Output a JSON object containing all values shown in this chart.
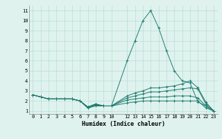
{
  "xlabel": "Humidex (Indice chaleur)",
  "bg_color": "#dff2ee",
  "line_color": "#1e7b6e",
  "grid_color": "#b8ddd7",
  "xlim": [
    -0.5,
    23.5
  ],
  "ylim": [
    0.7,
    11.5
  ],
  "xtick_positions": [
    0,
    1,
    2,
    3,
    4,
    5,
    6,
    7,
    8,
    9,
    10,
    12,
    13,
    14,
    15,
    16,
    17,
    18,
    19,
    20,
    21,
    22,
    23
  ],
  "xtick_labels": [
    "0",
    "1",
    "2",
    "3",
    "4",
    "5",
    "6",
    "7",
    "8",
    "9",
    "10",
    "12",
    "13",
    "14",
    "15",
    "16",
    "17",
    "18",
    "19",
    "20",
    "21",
    "22",
    "23"
  ],
  "ytick_positions": [
    1,
    2,
    3,
    4,
    5,
    6,
    7,
    8,
    9,
    10,
    11
  ],
  "ytick_labels": [
    "1",
    "2",
    "3",
    "4",
    "5",
    "6",
    "7",
    "8",
    "9",
    "10",
    "11"
  ],
  "lines": [
    {
      "x": [
        0,
        1,
        2,
        3,
        4,
        5,
        6,
        7,
        8,
        9,
        10,
        12,
        13,
        14,
        15,
        16,
        17,
        18,
        19,
        20,
        21,
        22,
        23
      ],
      "y": [
        2.6,
        2.4,
        2.2,
        2.2,
        2.2,
        2.2,
        2.0,
        1.3,
        1.6,
        1.5,
        1.5,
        6.0,
        8.0,
        10.0,
        11.0,
        9.3,
        7.0,
        5.0,
        4.0,
        3.8,
        1.9,
        1.5,
        1.0
      ]
    },
    {
      "x": [
        0,
        1,
        2,
        3,
        4,
        5,
        6,
        7,
        8,
        9,
        10,
        12,
        13,
        14,
        15,
        16,
        17,
        18,
        19,
        20,
        21,
        22,
        23
      ],
      "y": [
        2.6,
        2.4,
        2.2,
        2.2,
        2.2,
        2.2,
        2.0,
        1.4,
        1.7,
        1.5,
        1.5,
        2.5,
        2.8,
        3.0,
        3.3,
        3.3,
        3.4,
        3.5,
        3.7,
        4.0,
        3.3,
        1.9,
        1.0
      ]
    },
    {
      "x": [
        0,
        1,
        2,
        3,
        4,
        5,
        6,
        7,
        8,
        9,
        10,
        12,
        13,
        14,
        15,
        16,
        17,
        18,
        19,
        20,
        21,
        22,
        23
      ],
      "y": [
        2.6,
        2.4,
        2.2,
        2.2,
        2.2,
        2.2,
        2.0,
        1.4,
        1.7,
        1.5,
        1.5,
        2.3,
        2.5,
        2.7,
        2.9,
        2.9,
        3.0,
        3.1,
        3.2,
        3.3,
        3.2,
        1.7,
        1.0
      ]
    },
    {
      "x": [
        0,
        1,
        2,
        3,
        4,
        5,
        6,
        7,
        8,
        9,
        10,
        12,
        13,
        14,
        15,
        16,
        17,
        18,
        19,
        20,
        21,
        22,
        23
      ],
      "y": [
        2.6,
        2.4,
        2.2,
        2.2,
        2.2,
        2.2,
        2.0,
        1.4,
        1.6,
        1.5,
        1.5,
        2.1,
        2.2,
        2.3,
        2.4,
        2.4,
        2.4,
        2.5,
        2.5,
        2.5,
        2.3,
        1.5,
        1.0
      ]
    },
    {
      "x": [
        0,
        1,
        2,
        3,
        4,
        5,
        6,
        7,
        8,
        9,
        10,
        12,
        13,
        14,
        15,
        16,
        17,
        18,
        19,
        20,
        21,
        22,
        23
      ],
      "y": [
        2.6,
        2.4,
        2.2,
        2.2,
        2.2,
        2.2,
        2.0,
        1.3,
        1.5,
        1.5,
        1.5,
        1.8,
        1.9,
        2.0,
        2.0,
        2.0,
        2.0,
        2.0,
        2.0,
        2.0,
        2.0,
        1.3,
        1.0
      ]
    }
  ]
}
